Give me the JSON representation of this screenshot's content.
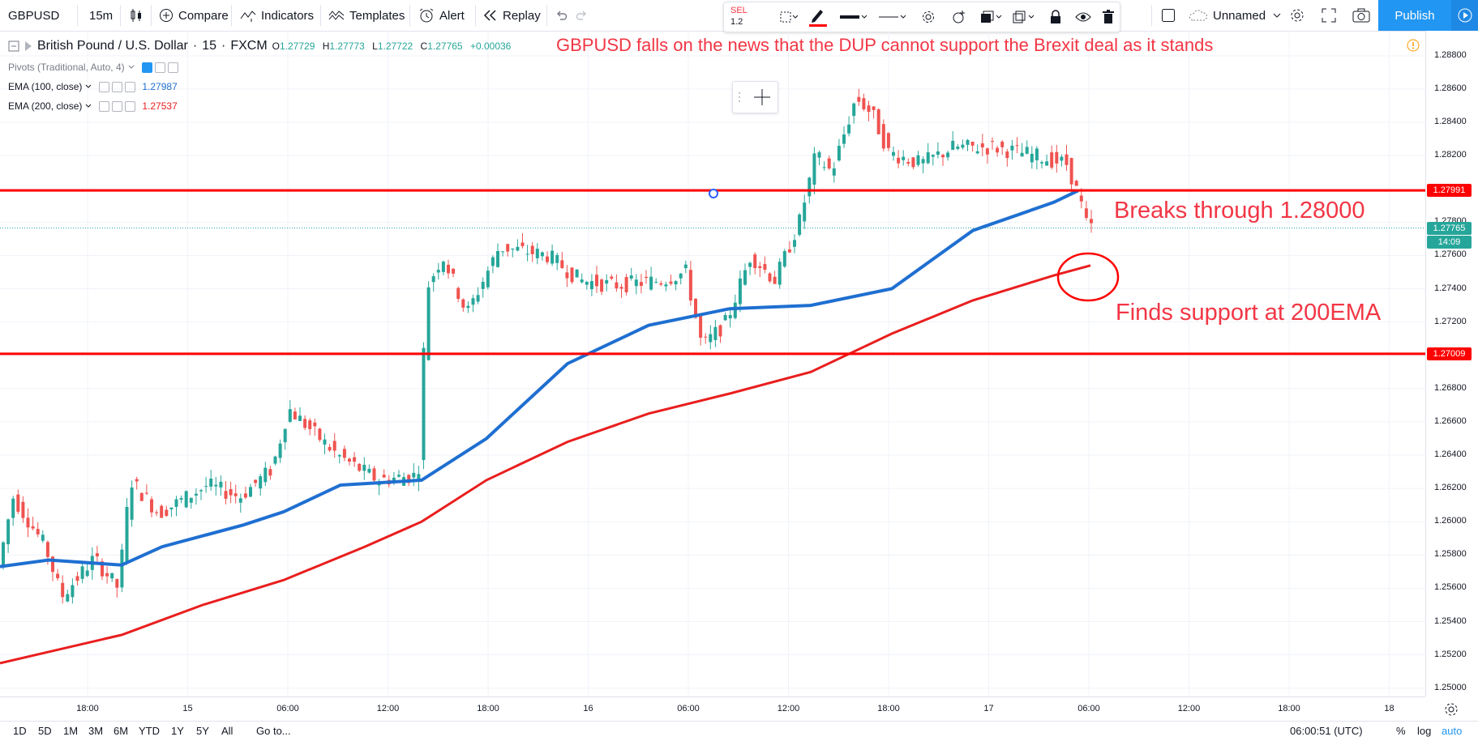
{
  "toolbar": {
    "symbol": "GBPUSD",
    "interval": "15m",
    "compare": "Compare",
    "indicators": "Indicators",
    "templates": "Templates",
    "alert": "Alert",
    "replay": "Replay",
    "layout_name": "Unnamed",
    "publish": "Publish"
  },
  "drawing_toolbar": {
    "sell_label": "SEL",
    "sell_value": "1.2"
  },
  "legend": {
    "instrument": "British Pound / U.S. Dollar",
    "interval": "15",
    "source": "FXCM",
    "open_label": "O",
    "open": "1.27729",
    "high_label": "H",
    "high": "1.27773",
    "low_label": "L",
    "low": "1.27722",
    "close_label": "C",
    "close": "1.27765",
    "change": "+0.00036",
    "pivots": "Pivots (Traditional, Auto, 4)",
    "ema100_label": "EMA (100, close)",
    "ema100_value": "1.27987",
    "ema200_label": "EMA (200, close)",
    "ema200_value": "1.27537"
  },
  "annotations": {
    "headline": "GBPUSD falls on the news that the DUP cannot support the Brexit deal as it stands",
    "break": "Breaks through 1.28000",
    "support": "Finds support at 200EMA"
  },
  "price_scale": {
    "ticks": [
      "1.28800",
      "1.28600",
      "1.28400",
      "1.28200",
      "1.28000",
      "1.27800",
      "1.27600",
      "1.27400",
      "1.27200",
      "1.27000",
      "1.26800",
      "1.26600",
      "1.26400",
      "1.26200",
      "1.26000",
      "1.25800",
      "1.25600",
      "1.25400",
      "1.25200",
      "1.25000"
    ],
    "tag_upper": "1.27991",
    "tag_last": "1.27765",
    "tag_countdown": "14:09",
    "tag_lower": "1.27009"
  },
  "time_scale": {
    "ticks": [
      "18:00",
      "15",
      "06:00",
      "12:00",
      "18:00",
      "16",
      "06:00",
      "12:00",
      "18:00",
      "17",
      "06:00",
      "12:00",
      "18:00",
      "18"
    ]
  },
  "bottom_bar": {
    "ranges": [
      "1D",
      "5D",
      "1M",
      "3M",
      "6M",
      "YTD",
      "1Y",
      "5Y",
      "All"
    ],
    "goto": "Go to...",
    "clock": "06:00:51 (UTC)",
    "percent": "%",
    "log": "log",
    "auto": "auto"
  },
  "colors": {
    "up": "#26a69a",
    "down": "#ef5350",
    "ema100": "#1f6fd1",
    "ema200": "#e91e1e",
    "hline": "#ff0000",
    "publish": "#2196f3"
  },
  "chart_data": {
    "type": "candlestick",
    "y_range": [
      1.2495,
      1.2895
    ],
    "horizontal_lines": [
      1.27991,
      1.27009
    ],
    "ema100_points": [
      [
        0,
        1.2573
      ],
      [
        60,
        1.2577
      ],
      [
        150,
        1.2574
      ],
      [
        200,
        1.2585
      ],
      [
        300,
        1.2598
      ],
      [
        350,
        1.2606
      ],
      [
        420,
        1.2622
      ],
      [
        520,
        1.2625
      ],
      [
        600,
        1.265
      ],
      [
        700,
        1.2695
      ],
      [
        800,
        1.2718
      ],
      [
        900,
        1.2728
      ],
      [
        1000,
        1.273
      ],
      [
        1100,
        1.274
      ],
      [
        1200,
        1.2775
      ],
      [
        1300,
        1.2792
      ],
      [
        1330,
        1.2799
      ]
    ],
    "ema200_points": [
      [
        0,
        1.2515
      ],
      [
        150,
        1.2532
      ],
      [
        250,
        1.255
      ],
      [
        350,
        1.2565
      ],
      [
        450,
        1.2585
      ],
      [
        520,
        1.26
      ],
      [
        600,
        1.2625
      ],
      [
        700,
        1.2648
      ],
      [
        800,
        1.2665
      ],
      [
        900,
        1.2677
      ],
      [
        1000,
        1.269
      ],
      [
        1100,
        1.2713
      ],
      [
        1200,
        1.2733
      ],
      [
        1300,
        1.2748
      ],
      [
        1345,
        1.2754
      ]
    ]
  }
}
